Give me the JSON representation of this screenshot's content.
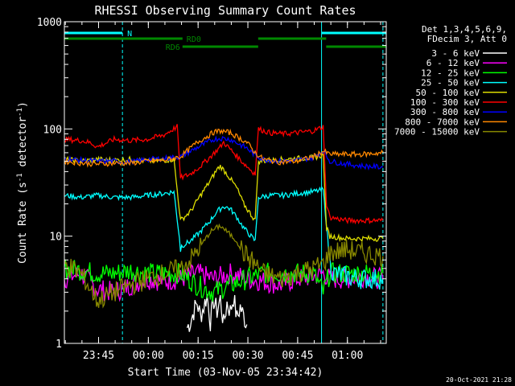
{
  "chart_data": {
    "type": "line",
    "title": "RHESSI Observing Summary Count Rates",
    "xlabel": "Start Time (03-Nov-05 23:34:42)",
    "ylabel": "Count Rate (s",
    "ylabel_sup": "-1",
    "ylabel_tail": " detector",
    "ylabel_close": ")",
    "yscale": "log",
    "ylim": [
      1,
      1000
    ],
    "xlim_minutes": [
      0,
      97
    ],
    "y_ticks": [
      {
        "value": 1,
        "label": "1"
      },
      {
        "value": 10,
        "label": "10"
      },
      {
        "value": 100,
        "label": "100"
      },
      {
        "value": 1000,
        "label": "1000"
      }
    ],
    "x_ticks": [
      {
        "value": 10.3,
        "label": "23:45"
      },
      {
        "value": 25.3,
        "label": "00:00"
      },
      {
        "value": 40.3,
        "label": "00:15"
      },
      {
        "value": 55.3,
        "label": "00:30"
      },
      {
        "value": 70.3,
        "label": "00:45"
      },
      {
        "value": 85.3,
        "label": "01:00"
      }
    ],
    "legend_header": [
      "Det 1,3,4,5,6,9,",
      "FDecim 3, Att 0"
    ],
    "timestamp": "20-Oct-2021 21:28",
    "flags": [
      {
        "label": "N",
        "color": "#00ffff",
        "segments": [
          [
            0,
            17.5
          ],
          [
            77.5,
            97
          ]
        ]
      },
      {
        "label": "RD0",
        "color": "#008800",
        "segments": [
          [
            0,
            35.6
          ],
          [
            58.4,
            78.9
          ]
        ]
      },
      {
        "label": "RD6",
        "color": "#008800",
        "segments": [
          [
            35.6,
            58.4
          ],
          [
            78.9,
            97
          ]
        ]
      }
    ],
    "vlines": [
      {
        "x": 0,
        "color": "#00ffff",
        "style": "solid"
      },
      {
        "x": 17.5,
        "color": "#00ffff",
        "style": "dashed"
      },
      {
        "x": 77.5,
        "color": "#00ffff",
        "style": "solid"
      },
      {
        "x": 96,
        "color": "#00ffff",
        "style": "dashed"
      }
    ],
    "series": [
      {
        "name": "3 - 6 keV",
        "color": "#ffffff",
        "x": [
          37,
          38,
          39,
          40,
          41,
          42,
          43,
          44,
          45,
          46,
          47,
          48,
          49,
          50,
          51,
          52,
          53,
          54,
          55
        ],
        "y": [
          1.4,
          1.6,
          2.0,
          2.4,
          1.8,
          2.2,
          2.8,
          1.6,
          2.5,
          2.0,
          2.6,
          1.5,
          2.4,
          2.0,
          2.7,
          1.7,
          2.2,
          1.8,
          1.5
        ]
      },
      {
        "name": "6 - 12 keV",
        "color": "#ff00ff",
        "x": [
          0,
          5,
          10,
          15,
          20,
          25,
          30,
          35,
          40,
          45,
          50,
          55,
          60,
          65,
          70,
          75,
          78,
          80,
          85,
          90,
          96
        ],
        "y": [
          4.0,
          4.5,
          3.2,
          3.0,
          3.5,
          4.0,
          3.8,
          4.0,
          4.5,
          4.0,
          4.5,
          4.0,
          3.8,
          3.5,
          4.0,
          4.2,
          4.5,
          4.0,
          4.0,
          4.2,
          4.0
        ]
      },
      {
        "name": "12 - 25 keV",
        "color": "#00ff00",
        "x": [
          0,
          5,
          10,
          15,
          20,
          25,
          30,
          35,
          40,
          45,
          50,
          55,
          60,
          65,
          70,
          75,
          78,
          80,
          85,
          90,
          96
        ],
        "y": [
          5.0,
          4.8,
          4.5,
          4.5,
          4.8,
          4.5,
          4.5,
          4.5,
          3.5,
          3.0,
          3.5,
          4.0,
          4.5,
          4.5,
          4.5,
          4.5,
          3.0,
          4.5,
          4.5,
          4.5,
          4.5
        ]
      },
      {
        "name": "25 - 50 keV",
        "color": "#00ffff",
        "x": [
          0,
          5,
          10,
          15,
          20,
          25,
          30,
          33,
          35,
          38,
          41,
          44,
          46,
          48,
          50,
          52,
          54,
          57.5,
          58.5,
          62,
          66,
          70,
          75,
          78,
          80,
          81,
          85,
          90,
          96
        ],
        "y": [
          24,
          23,
          24,
          23,
          23,
          24,
          25,
          26,
          8,
          9,
          11,
          14,
          17,
          19,
          18,
          15,
          12,
          9,
          23,
          24,
          24,
          25,
          26,
          27,
          6,
          4.5,
          4.2,
          4.0,
          4.0
        ]
      },
      {
        "name": "50 - 100 keV",
        "color": "#dddd00",
        "x": [
          0,
          5,
          10,
          15,
          20,
          25,
          30,
          33,
          35,
          38,
          41,
          44,
          46,
          47,
          49,
          52,
          54,
          57.5,
          58.5,
          62,
          66,
          70,
          75,
          78,
          79,
          80,
          85,
          90,
          96
        ],
        "y": [
          52,
          50,
          52,
          51,
          52,
          50,
          51,
          52,
          14,
          17,
          24,
          33,
          42,
          45,
          38,
          28,
          20,
          14,
          50,
          51,
          52,
          53,
          54,
          57,
          12,
          10,
          9.5,
          9.5,
          9.5
        ]
      },
      {
        "name": "100 - 300 keV",
        "color": "#ff0000",
        "x": [
          0,
          5,
          8,
          10,
          15,
          20,
          25,
          30,
          34,
          35,
          38,
          41,
          44,
          47,
          48,
          51,
          54,
          57.5,
          58.5,
          62,
          66,
          70,
          75,
          78,
          79,
          80,
          85,
          90,
          96
        ],
        "y": [
          80,
          78,
          74,
          68,
          80,
          78,
          80,
          88,
          105,
          35,
          38,
          45,
          55,
          68,
          75,
          60,
          48,
          38,
          100,
          92,
          90,
          92,
          96,
          105,
          20,
          15,
          14,
          14,
          14
        ]
      },
      {
        "name": "300 - 800 keV",
        "color": "#0000ff",
        "x": [
          0,
          5,
          10,
          15,
          20,
          25,
          30,
          35,
          40,
          45,
          47,
          50,
          55,
          57.5,
          60,
          65,
          70,
          75,
          78,
          80,
          85,
          90,
          96
        ],
        "y": [
          53,
          51,
          50,
          50,
          49,
          52,
          53,
          55,
          67,
          80,
          82,
          80,
          66,
          57,
          52,
          50,
          51,
          54,
          63,
          50,
          47,
          45,
          44
        ]
      },
      {
        "name": "800 - 7000 keV",
        "color": "#ff8800",
        "x": [
          0,
          5,
          10,
          15,
          20,
          25,
          30,
          35,
          40,
          45,
          47,
          50,
          55,
          57.5,
          60,
          65,
          70,
          75,
          78,
          80,
          85,
          90,
          96
        ],
        "y": [
          50,
          48,
          47,
          48,
          48,
          50,
          51,
          55,
          75,
          93,
          96,
          92,
          75,
          60,
          52,
          49,
          50,
          55,
          62,
          58,
          58,
          58,
          60
        ]
      },
      {
        "name": "7000 - 15000 keV",
        "color": "#888800",
        "x": [
          0,
          5,
          10,
          15,
          20,
          25,
          30,
          35,
          38,
          41,
          44,
          46,
          47,
          49,
          52,
          54,
          57.5,
          60,
          65,
          70,
          75,
          78,
          80,
          85,
          90,
          96
        ],
        "y": [
          5.5,
          4.5,
          2.5,
          3.0,
          3.5,
          4.0,
          4.5,
          5.0,
          6.0,
          8.0,
          11,
          12,
          12.5,
          11,
          9,
          7,
          5.5,
          4.5,
          4.0,
          4.5,
          5.0,
          5.5,
          7,
          7.5,
          7.0,
          6.5
        ]
      }
    ]
  }
}
